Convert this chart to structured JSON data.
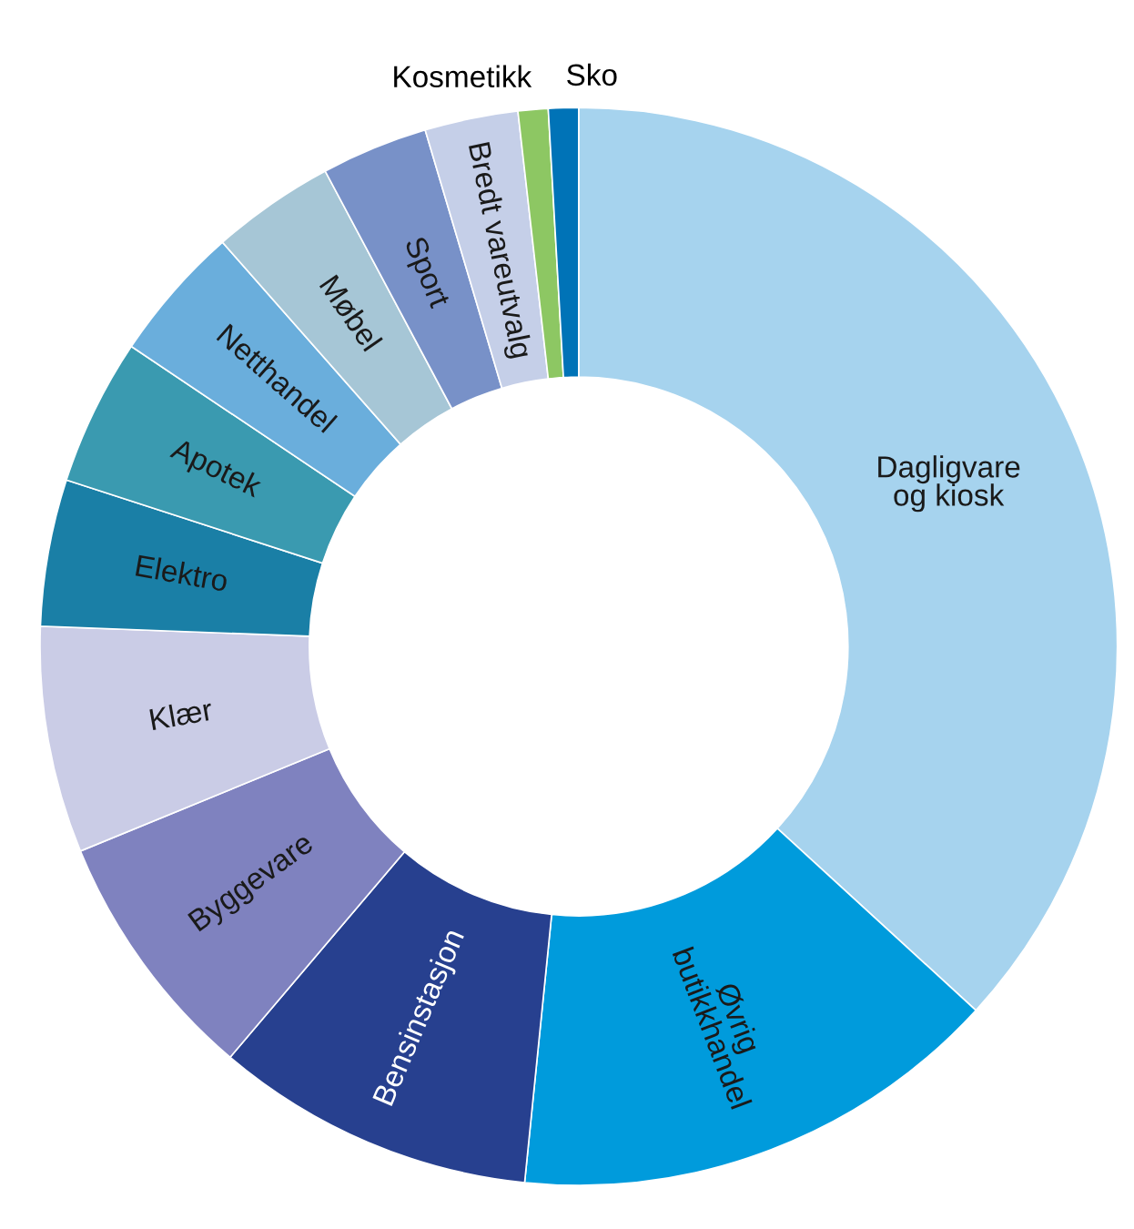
{
  "chart_data": {
    "type": "donut",
    "categories": [
      "Dagligvare\nog kiosk",
      "Øvrig\nbutikkhandel",
      "Bensinstasjon",
      "Byggevare",
      "Klær",
      "Elektro",
      "Apotek",
      "Netthandel",
      "Møbel",
      "Sport",
      "Bredt vareutvalg",
      "Kosmetikk",
      "Sko"
    ],
    "values": [
      36.8,
      14.8,
      9.6,
      7.6,
      6.8,
      4.4,
      4.4,
      4.1,
      3.7,
      3.2,
      2.8,
      0.9,
      0.9
    ],
    "colors": [
      "#a6d3ee",
      "#009bdc",
      "#27408f",
      "#7f82bf",
      "#cacce6",
      "#1a7fa6",
      "#3a9ab0",
      "#6aaedc",
      "#a6c6d6",
      "#7891c8",
      "#c5cfe8",
      "#8dc763",
      "#0073b7"
    ],
    "legend": false
  }
}
